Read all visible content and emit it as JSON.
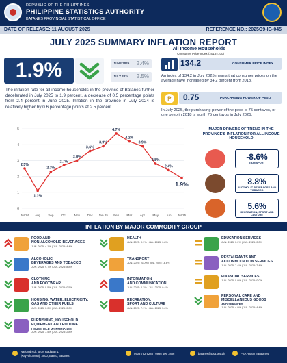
{
  "header": {
    "line1": "REPUBLIC OF THE PHILIPPINES",
    "agency": "PHILIPPINE STATISTICS AUTHORITY",
    "office": "BATANES PROVINCIAL STATISTICAL OFFICE",
    "release_date": "DATE OF RELEASE: 11 AUGUST 2025",
    "reference": "REFERENCE NO.: 2025O9-IG-045"
  },
  "title": "JULY 2025 SUMMARY INFLATION REPORT",
  "subtitle": "All Income Households",
  "cpi_base": "Consumer Price Index (2018=100)",
  "headline": {
    "rate": "1.9%",
    "june_label": "JUNE 2025",
    "june_value": "2.4%",
    "july2024_label": "JULY 2024",
    "july2024_value": "2.5%",
    "paragraph": "The inflation rate for all income households in the province of Batanes further decelerated in July 2025 to 1.9 percent, a decrease of 0.5 percentage points from 2.4 percent in June 2025. Inflation in the province in July 2024 is relatively higher by 0.6 percentage points at 2.5 percent."
  },
  "cpi": {
    "value": "134.2",
    "label": "CONSUMER PRICE INDEX",
    "paragraph": "An index of 134.2 in July 2025 means that consumer prices on the average have increased by 34.2 percent from 2018."
  },
  "ppp": {
    "value": "0.75",
    "label": "PURCHASING POWER OF PESO",
    "paragraph": "In July 2025, the purchasing power of the peso is 75 centavos, or one peso in 2018 is worth 75 centavos in July 2025."
  },
  "chart_data": {
    "type": "line",
    "categories": [
      "Jul 24",
      "Aug",
      "Sep",
      "Oct",
      "Nov",
      "Dec",
      "Jan 25",
      "Feb",
      "Mar",
      "Apr",
      "May",
      "Jun",
      "Jul 25"
    ],
    "values": [
      2.5,
      1.1,
      2.3,
      2.7,
      3.0,
      3.6,
      3.9,
      4.7,
      4.2,
      3.9,
      2.8,
      2.4,
      1.9
    ],
    "labels": [
      "2.5%",
      "1.1%",
      "2.3%",
      "2.7%",
      "3.0%",
      "3.6%",
      "3.9%",
      "4.7%",
      "4.2%",
      "3.9%",
      "2.8%",
      "2.4%",
      "1.9%"
    ],
    "yticks": [
      "0",
      "1",
      "2",
      "3",
      "4",
      "5"
    ],
    "ylim": [
      0,
      5
    ],
    "grid": true,
    "color": "#e0312f"
  },
  "drivers": {
    "title": "MAJOR DRIVERS OF TREND IN THE PROVINCE'S INFLATION FOR ALL INCOME HOUSEHOLD",
    "items": [
      {
        "value": "-8.6%",
        "label": "TRANSPORT"
      },
      {
        "value": "8.8%",
        "label": "ALCOHOLIC BEVERAGES AND TOBACCO"
      },
      {
        "value": "5.6%",
        "label": "RECREATION, SPORT AND CULTURE"
      }
    ]
  },
  "commodity": {
    "title": "INFLATION BY MAJOR COMMODITY GROUP",
    "left": [
      {
        "name1": "FOOD AND",
        "name2": "NON-ALCOHOLIC BEVERAGES",
        "sub": "JUN. 2025: 4.1% | JUL. 2025: 4.4%",
        "dir": "up"
      },
      {
        "name1": "ALCOHOLIC",
        "name2": "BEVERAGES AND TOBACCO",
        "sub": "JUN. 2025: 9.7% | JUL. 2025: 8.8%",
        "dir": "down"
      },
      {
        "name1": "CLOTHING",
        "name2": "AND FOOTWEAR",
        "sub": "JUN. 2025: 0.5% | JUL. 2025: 0.5%",
        "dir": "down"
      },
      {
        "name1": "HOUSING, WATER, ELECTRICITY,",
        "name2": "GAS AND OTHER FUELS",
        "sub": "JUN. 2025: 0.0% | JUL. 2025: 0.0%",
        "dir": "down"
      },
      {
        "name1": "FURNISHING, HOUSEHOLD",
        "name2": "EQUIPMENT AND ROUTINE",
        "name3": "HOUSEHOLD MAINTENANCE",
        "sub": "JUN. 2025: 7.5% | JUL. 2025: 2.8%",
        "dir": "down"
      }
    ],
    "middle": [
      {
        "name1": "HEALTH",
        "name2": "",
        "sub": "JUN. 2025: 0.9% | JUL. 2025: 0.8%",
        "dir": "down"
      },
      {
        "name1": "TRANSPORT",
        "name2": "",
        "sub": "JUN. 2025: -6.0% | JUL. 2025: -8.6%",
        "dir": "down"
      },
      {
        "name1": "INFORMATION",
        "name2": "AND COMMUNICATION",
        "sub": "JUN. 2025: 0.2% | JUL. 2025: 0.4%",
        "dir": "up"
      },
      {
        "name1": "RECREATION,",
        "name2": "SPORT AND CULTURE",
        "sub": "JUN. 2025: 7.1% | JUL. 2025: 5.6%",
        "dir": "down"
      }
    ],
    "right": [
      {
        "name1": "EDUCATION SERVICES",
        "name2": "",
        "sub": "JUN. 2025: 0.0% | JUL. 2025: 0.0%",
        "dir": "flat"
      },
      {
        "name1": "RESTAURANTS AND",
        "name2": "ACCOMMODATION SERVICES",
        "sub": "JUN. 2025: 7.4% | JUL. 2025: 7.4%",
        "dir": "flat"
      },
      {
        "name1": "FINANCIAL SERVICES",
        "name2": "",
        "sub": "JUN. 2025: 0.0% | JUL. 2025: 0.0%",
        "dir": "flat"
      },
      {
        "name1": "PERSONAL CARE AND",
        "name2": "MISCELLANEOUS GOODS",
        "name3": "AND SERVICES",
        "sub": "JUN. 2025: 4.9% | JUL. 2025: 4.4%",
        "dir": "down"
      }
    ]
  },
  "footer": {
    "addr1": "National Rd., Brgy. Radiwan 1",
    "addr2": "(Kayvuhuhvan), 3900, Basco, Batanes",
    "phone": "0908 752 9288 | 0998 406 1886",
    "email": "batanes@psa.gov.ph",
    "fb": "PSA RSSO II Batanes"
  },
  "colors": {
    "navy": "#0d2a5c",
    "up": "#d9302c",
    "down": "#3aa34a",
    "flat": "#e0a020"
  }
}
